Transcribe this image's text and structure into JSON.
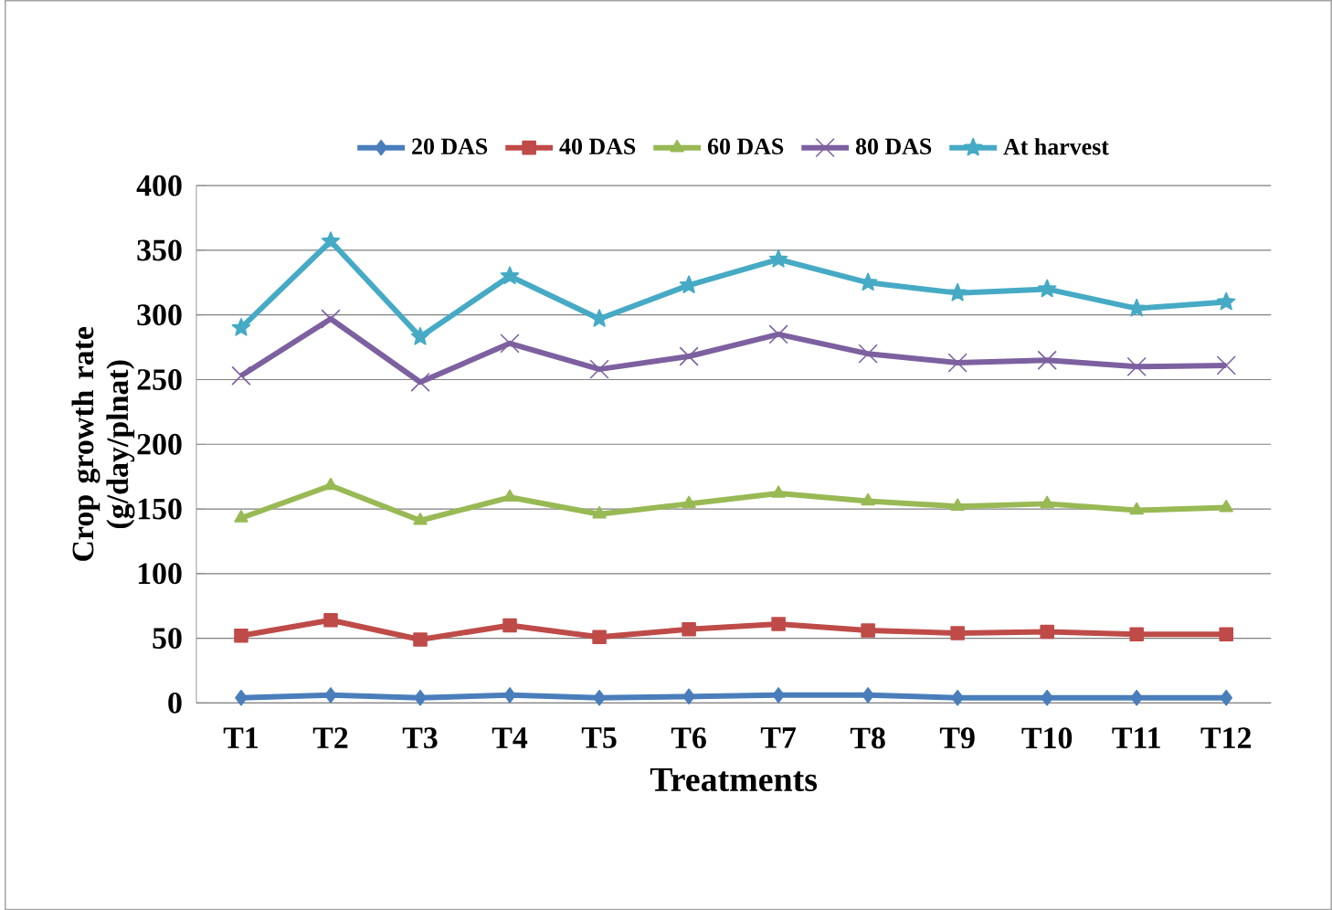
{
  "chart_data": {
    "type": "line",
    "xlabel": "Treatments",
    "ylabel": "Crop growth rate (g/day/plnat)",
    "categories": [
      "T1",
      "T2",
      "T3",
      "T4",
      "T5",
      "T6",
      "T7",
      "T8",
      "T9",
      "T10",
      "T11",
      "T12"
    ],
    "ylim": [
      0,
      400
    ],
    "yticks": [
      0,
      50,
      100,
      150,
      200,
      250,
      300,
      350,
      400
    ],
    "grid": "y",
    "legend": "top",
    "series": [
      {
        "name": "20 DAS",
        "color": "#4a7ebb",
        "marker": "diamond",
        "values": [
          4,
          6,
          4,
          6,
          4,
          5,
          6,
          6,
          4,
          4,
          4,
          4
        ]
      },
      {
        "name": "40 DAS",
        "color": "#be4b48",
        "marker": "square",
        "values": [
          52,
          64,
          49,
          60,
          51,
          57,
          61,
          56,
          54,
          55,
          53,
          53
        ]
      },
      {
        "name": "60 DAS",
        "color": "#98b954",
        "marker": "triangle",
        "values": [
          143,
          168,
          141,
          159,
          146,
          154,
          162,
          156,
          152,
          154,
          149,
          151
        ]
      },
      {
        "name": "80 DAS",
        "color": "#7d60a0",
        "marker": "cross",
        "values": [
          253,
          297,
          248,
          278,
          258,
          268,
          285,
          270,
          263,
          265,
          260,
          261
        ]
      },
      {
        "name": "At harvest",
        "color": "#46aac5",
        "marker": "star",
        "values": [
          290,
          357,
          283,
          330,
          297,
          323,
          343,
          325,
          317,
          320,
          305,
          310
        ]
      }
    ]
  }
}
